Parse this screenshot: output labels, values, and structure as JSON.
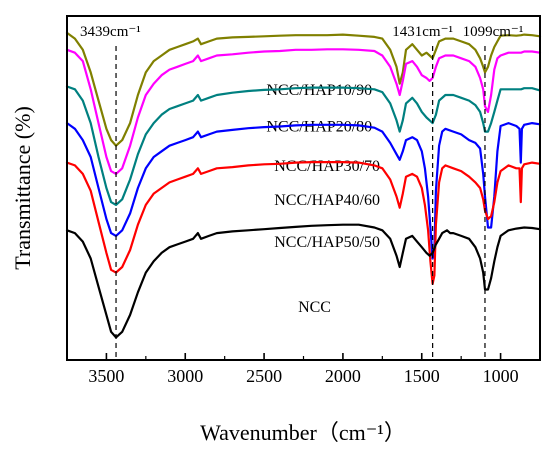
{
  "chart_data": {
    "type": "line",
    "title": "",
    "xlabel": "Wavenumber（cm⁻¹）",
    "ylabel": "Transmittance  (%)",
    "xlim": [
      3750,
      750
    ],
    "x_reversed": true,
    "xticks": [
      3500,
      3000,
      2500,
      2000,
      1500,
      1000
    ],
    "xtick_labels": [
      "3500",
      "3000",
      "2500",
      "2000",
      "1500",
      "1000"
    ],
    "grid": false,
    "legend": "none",
    "annotations": [
      {
        "label": "3439cm⁻¹",
        "x": 3439
      },
      {
        "label": "1431cm⁻¹",
        "x": 1431
      },
      {
        "label": "1099cm⁻¹",
        "x": 1099
      }
    ],
    "series": [
      {
        "name": "NCC/HAP10/90",
        "color": "#808000",
        "x": [
          3750,
          3700,
          3650,
          3600,
          3550,
          3500,
          3470,
          3439,
          3400,
          3350,
          3300,
          3250,
          3200,
          3150,
          3100,
          3050,
          3000,
          2950,
          2920,
          2900,
          2850,
          2800,
          2700,
          2600,
          2500,
          2400,
          2300,
          2200,
          2100,
          2000,
          1900,
          1800,
          1750,
          1700,
          1660,
          1640,
          1620,
          1600,
          1560,
          1530,
          1500,
          1470,
          1450,
          1431,
          1410,
          1390,
          1350,
          1300,
          1250,
          1200,
          1160,
          1130,
          1110,
          1099,
          1080,
          1060,
          1040,
          1020,
          1000,
          950,
          900,
          870,
          850,
          800,
          750
        ],
        "y": [
          100,
          99,
          97,
          93,
          88,
          83,
          81,
          80,
          81,
          84,
          89,
          93,
          95,
          96,
          97,
          97.5,
          98,
          98.5,
          99,
          98,
          98.5,
          99,
          99.2,
          99.3,
          99.4,
          99.5,
          99.6,
          99.6,
          99.6,
          99.7,
          99.5,
          99.3,
          99,
          97,
          94,
          91,
          93,
          97,
          98,
          97,
          96,
          96.5,
          96,
          95.5,
          97,
          98.5,
          99,
          99,
          98.5,
          98,
          97,
          95.5,
          94,
          93,
          94,
          96,
          97.5,
          98.5,
          99.5,
          99.6,
          99.5,
          99.6,
          99.7,
          99.6,
          99.4
        ]
      },
      {
        "name": "NCC/HAP20/80",
        "color": "#ff00ff",
        "x": [
          3750,
          3700,
          3650,
          3600,
          3550,
          3500,
          3470,
          3439,
          3400,
          3350,
          3300,
          3250,
          3200,
          3150,
          3100,
          3050,
          3000,
          2950,
          2920,
          2900,
          2850,
          2800,
          2700,
          2600,
          2500,
          2400,
          2300,
          2200,
          2100,
          2000,
          1900,
          1800,
          1750,
          1700,
          1660,
          1640,
          1620,
          1600,
          1560,
          1530,
          1500,
          1470,
          1450,
          1431,
          1410,
          1390,
          1350,
          1300,
          1250,
          1200,
          1160,
          1130,
          1110,
          1099,
          1080,
          1060,
          1040,
          1020,
          1000,
          950,
          900,
          870,
          850,
          800,
          750
        ],
        "y": [
          97,
          96.5,
          95,
          90,
          84,
          78,
          75.5,
          75,
          76,
          80,
          85,
          89,
          91,
          92.5,
          93.5,
          94,
          94.5,
          95,
          96,
          95,
          95.5,
          96,
          96.2,
          96.5,
          96.7,
          96.8,
          97,
          97,
          97.1,
          97.1,
          97,
          96.8,
          96,
          94,
          91,
          89,
          91.5,
          94.5,
          95,
          94,
          92.5,
          92,
          91.5,
          92,
          94,
          95.5,
          96,
          96,
          95.5,
          95,
          94,
          92,
          90,
          87,
          86,
          89,
          93.5,
          95.5,
          96,
          96.5,
          96.5,
          96.5,
          96.7,
          96.7,
          96.5
        ]
      },
      {
        "name": "NCC/HAP30/70",
        "color": "#008080",
        "x": [
          3750,
          3700,
          3650,
          3600,
          3550,
          3500,
          3470,
          3439,
          3400,
          3350,
          3300,
          3250,
          3200,
          3150,
          3100,
          3050,
          3000,
          2950,
          2920,
          2900,
          2850,
          2800,
          2700,
          2600,
          2500,
          2400,
          2300,
          2200,
          2100,
          2000,
          1900,
          1800,
          1750,
          1700,
          1660,
          1640,
          1620,
          1600,
          1560,
          1530,
          1500,
          1470,
          1450,
          1431,
          1410,
          1390,
          1350,
          1300,
          1250,
          1200,
          1160,
          1130,
          1110,
          1099,
          1080,
          1060,
          1040,
          1020,
          1000,
          950,
          900,
          870,
          850,
          800,
          750
        ],
        "y": [
          90.5,
          90,
          88,
          84,
          78,
          72.5,
          70,
          69.5,
          70.5,
          74,
          78.5,
          82,
          84,
          85.5,
          86.5,
          87,
          87.5,
          88,
          89,
          88,
          88.5,
          89,
          89.4,
          89.7,
          89.9,
          90,
          90.2,
          90.3,
          90.3,
          90.3,
          90.2,
          90,
          89.5,
          87.5,
          84.5,
          82.5,
          84.5,
          87.5,
          88.5,
          87.5,
          86,
          85,
          84.5,
          84,
          85.5,
          88,
          89,
          89,
          88.5,
          88,
          87.2,
          86,
          84,
          82.5,
          82.5,
          84,
          86,
          88,
          90,
          90,
          90,
          90,
          90.2,
          90.2,
          89.8
        ]
      },
      {
        "name": "NCC/HAP40/60",
        "color": "#0000ff",
        "x": [
          3750,
          3700,
          3650,
          3600,
          3550,
          3500,
          3470,
          3439,
          3400,
          3350,
          3300,
          3250,
          3200,
          3150,
          3100,
          3050,
          3000,
          2950,
          2920,
          2900,
          2850,
          2800,
          2700,
          2600,
          2500,
          2400,
          2300,
          2200,
          2100,
          2000,
          1900,
          1800,
          1750,
          1700,
          1660,
          1640,
          1620,
          1600,
          1560,
          1530,
          1500,
          1480,
          1460,
          1445,
          1431,
          1420,
          1410,
          1390,
          1370,
          1350,
          1300,
          1250,
          1200,
          1160,
          1130,
          1110,
          1099,
          1080,
          1060,
          1040,
          1020,
          1000,
          950,
          900,
          880,
          872,
          865,
          850,
          800,
          750
        ],
        "y": [
          84,
          83,
          81,
          78,
          72.5,
          67,
          64.5,
          64,
          65,
          68,
          72.5,
          76,
          78,
          79,
          80,
          80.5,
          81,
          81.5,
          82.5,
          81.5,
          82,
          82.5,
          82.8,
          83.1,
          83.3,
          83.4,
          83.6,
          83.7,
          83.7,
          83.7,
          83.6,
          83.2,
          82.5,
          80.5,
          78.5,
          77.5,
          79,
          81,
          81.5,
          81,
          79,
          76,
          71,
          65.5,
          60,
          61.5,
          72,
          80,
          82.5,
          83,
          82.5,
          82,
          81,
          80.5,
          79.5,
          75,
          71,
          65.5,
          65.5,
          71,
          79,
          83.5,
          84,
          83.5,
          83,
          77,
          83,
          83.7,
          84,
          83.8
        ]
      },
      {
        "name": "NCC/HAP50/50",
        "color": "#ff0000",
        "x": [
          3750,
          3700,
          3650,
          3600,
          3550,
          3500,
          3470,
          3439,
          3400,
          3350,
          3300,
          3250,
          3200,
          3150,
          3100,
          3050,
          3000,
          2950,
          2920,
          2900,
          2850,
          2800,
          2700,
          2600,
          2500,
          2400,
          2300,
          2200,
          2100,
          2000,
          1900,
          1800,
          1750,
          1700,
          1660,
          1640,
          1620,
          1600,
          1560,
          1530,
          1500,
          1480,
          1460,
          1445,
          1431,
          1420,
          1410,
          1390,
          1370,
          1350,
          1300,
          1250,
          1200,
          1160,
          1130,
          1110,
          1099,
          1080,
          1060,
          1040,
          1020,
          1000,
          950,
          900,
          880,
          872,
          865,
          850,
          800,
          750
        ],
        "y": [
          77,
          76.5,
          75,
          72,
          66.5,
          61,
          58,
          57.5,
          58.5,
          61.5,
          66,
          69.5,
          71.5,
          72.5,
          73.5,
          74,
          74.5,
          75,
          76,
          75,
          75.5,
          76,
          76.2,
          76.5,
          76.7,
          76.8,
          77,
          77.1,
          77.1,
          77.1,
          77,
          76.5,
          76,
          74,
          71,
          69,
          71.5,
          74.5,
          75,
          74.5,
          72.5,
          69.5,
          65,
          59.5,
          55.5,
          57,
          66,
          73.5,
          76,
          76.5,
          76,
          75.5,
          74.5,
          73.5,
          72.5,
          70.5,
          68.5,
          67,
          67.5,
          70,
          73.5,
          75.5,
          76.5,
          76,
          76,
          70,
          76,
          76.7,
          77,
          76.8
        ]
      },
      {
        "name": "NCC",
        "color": "#000000",
        "x": [
          3750,
          3700,
          3650,
          3600,
          3550,
          3500,
          3470,
          3439,
          3400,
          3350,
          3300,
          3250,
          3200,
          3150,
          3100,
          3050,
          3000,
          2950,
          2920,
          2900,
          2850,
          2800,
          2700,
          2600,
          2500,
          2400,
          2300,
          2200,
          2100,
          2000,
          1900,
          1800,
          1750,
          1700,
          1660,
          1640,
          1620,
          1600,
          1560,
          1530,
          1500,
          1470,
          1450,
          1431,
          1410,
          1390,
          1370,
          1340,
          1320,
          1300,
          1250,
          1200,
          1160,
          1130,
          1110,
          1099,
          1080,
          1060,
          1040,
          1020,
          1000,
          950,
          900,
          850,
          800,
          750
        ],
        "y": [
          65,
          64.5,
          63,
          60,
          55,
          50,
          47,
          46,
          47,
          50,
          54,
          57.5,
          59.5,
          61,
          62,
          62.5,
          63,
          63.5,
          64.5,
          63.5,
          64,
          64.5,
          64.8,
          65,
          65.2,
          65.4,
          65.6,
          65.8,
          65.9,
          66,
          66,
          65.5,
          65,
          63.5,
          60.5,
          58.5,
          61,
          63.5,
          64,
          63,
          62,
          61,
          60.5,
          61,
          62.5,
          63.5,
          64.5,
          65,
          64.5,
          64.5,
          64,
          63.5,
          62,
          60,
          57.5,
          54.5,
          54.5,
          56.5,
          59.5,
          62,
          64,
          65,
          65.3,
          65.5,
          65.4,
          65.2
        ]
      }
    ],
    "series_label_positions": [
      {
        "x": 2150,
        "y": 89
      },
      {
        "x": 2150,
        "y": 82.5
      },
      {
        "x": 2100,
        "y": 75.5
      },
      {
        "x": 2100,
        "y": 69.5
      },
      {
        "x": 2100,
        "y": 62
      },
      {
        "x": 2180,
        "y": 50.5
      }
    ]
  }
}
